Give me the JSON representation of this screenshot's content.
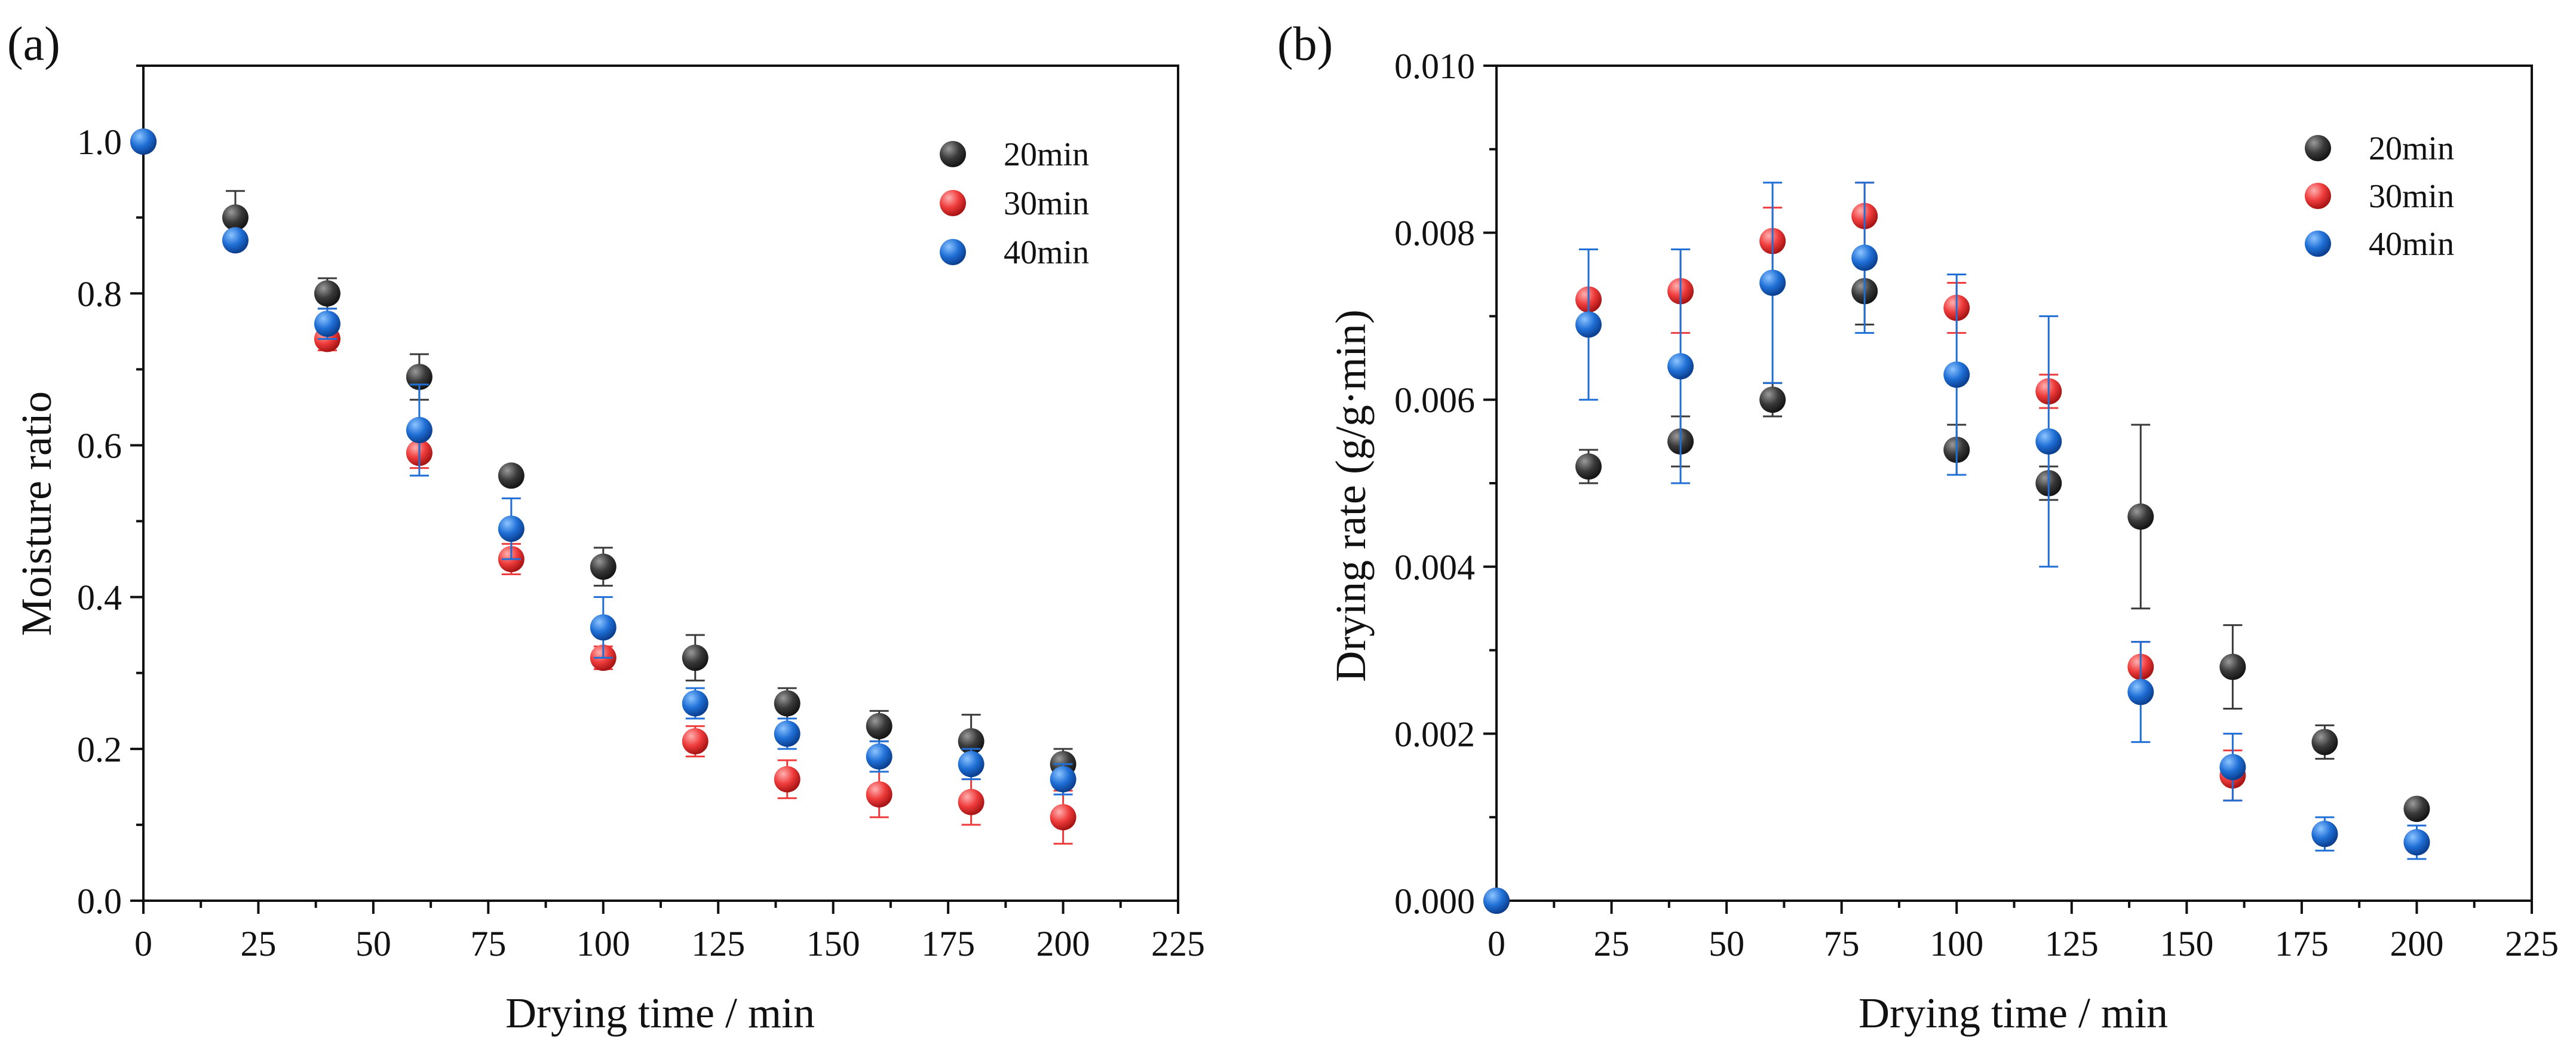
{
  "colors": {
    "20min": "#3a3a3a",
    "30min": "#ef3b3b",
    "40min": "#1f6fd6",
    "axis": "#111111"
  },
  "chart_data": [
    {
      "type": "scatter",
      "panel_label": "(a)",
      "xlabel": "Drying time / min",
      "ylabel": "Moisture ratio",
      "xlim": [
        0,
        225
      ],
      "ylim": [
        0.0,
        1.1
      ],
      "xticks": [
        0,
        25,
        50,
        75,
        100,
        125,
        150,
        175,
        200,
        225
      ],
      "xtick_labels": [
        "0",
        "25",
        "50",
        "75",
        "100",
        "125",
        "150",
        "175",
        "200",
        "225"
      ],
      "yticks": [
        0.0,
        0.2,
        0.4,
        0.6,
        0.8,
        1.0
      ],
      "ytick_labels": [
        "0.0",
        "0.2",
        "0.4",
        "0.6",
        "0.8",
        "1.0"
      ],
      "legend_position": "top-right",
      "series": [
        {
          "name": "20min",
          "x": [
            0,
            20,
            40,
            60,
            80,
            100,
            120,
            140,
            160,
            180,
            200
          ],
          "y": [
            1.0,
            0.9,
            0.8,
            0.69,
            0.56,
            0.44,
            0.32,
            0.26,
            0.23,
            0.21,
            0.18
          ],
          "err": [
            0,
            0.035,
            0.02,
            0.03,
            0.01,
            0.025,
            0.03,
            0.02,
            0.02,
            0.035,
            0.02
          ]
        },
        {
          "name": "30min",
          "x": [
            0,
            20,
            40,
            60,
            80,
            100,
            120,
            140,
            160,
            180,
            200
          ],
          "y": [
            1.0,
            0.87,
            0.74,
            0.59,
            0.45,
            0.32,
            0.21,
            0.16,
            0.14,
            0.13,
            0.11
          ],
          "err": [
            0,
            0.01,
            0.015,
            0.02,
            0.02,
            0.015,
            0.02,
            0.025,
            0.03,
            0.03,
            0.035
          ]
        },
        {
          "name": "40min",
          "x": [
            0,
            20,
            40,
            60,
            80,
            100,
            120,
            140,
            160,
            180,
            200
          ],
          "y": [
            1.0,
            0.87,
            0.76,
            0.62,
            0.49,
            0.36,
            0.26,
            0.22,
            0.19,
            0.18,
            0.16
          ],
          "err": [
            0,
            0.01,
            0.02,
            0.06,
            0.04,
            0.04,
            0.02,
            0.02,
            0.02,
            0.02,
            0.02
          ]
        }
      ]
    },
    {
      "type": "scatter",
      "panel_label": "(b)",
      "xlabel": "Drying time / min",
      "ylabel": "Drying rate (g/g·min)",
      "xlim": [
        0,
        225
      ],
      "ylim": [
        0.0,
        0.01
      ],
      "xticks": [
        0,
        25,
        50,
        75,
        100,
        125,
        150,
        175,
        200,
        225
      ],
      "xtick_labels": [
        "0",
        "25",
        "50",
        "75",
        "100",
        "125",
        "150",
        "175",
        "200",
        "225"
      ],
      "yticks": [
        0.0,
        0.002,
        0.004,
        0.006,
        0.008,
        0.01
      ],
      "ytick_labels": [
        "0.000",
        "0.002",
        "0.004",
        "0.006",
        "0.008",
        "0.010"
      ],
      "legend_position": "top-right",
      "series": [
        {
          "name": "20min",
          "x": [
            0,
            20,
            40,
            60,
            80,
            100,
            120,
            140,
            160,
            180,
            200
          ],
          "y": [
            0.0,
            0.0052,
            0.0055,
            0.006,
            0.0073,
            0.0054,
            0.005,
            0.0046,
            0.0028,
            0.0019,
            0.0011
          ],
          "err": [
            0,
            0.0002,
            0.0003,
            0.0002,
            0.0004,
            0.0003,
            0.0002,
            0.0011,
            0.0005,
            0.0002,
            0.0001
          ]
        },
        {
          "name": "30min",
          "x": [
            0,
            20,
            40,
            60,
            80,
            100,
            120,
            140,
            160,
            180,
            200
          ],
          "y": [
            0.0,
            0.0072,
            0.0073,
            0.0079,
            0.0082,
            0.0071,
            0.0061,
            0.0028,
            0.0015,
            0.0008,
            0.0007
          ],
          "err": [
            0,
            0.0001,
            0.0005,
            0.0004,
            0.0004,
            0.0003,
            0.0002,
            0.0003,
            0.0003,
            0.0001,
            0.0001
          ]
        },
        {
          "name": "40min",
          "x": [
            0,
            20,
            40,
            60,
            80,
            100,
            120,
            140,
            160,
            180,
            200
          ],
          "y": [
            0.0,
            0.0069,
            0.0064,
            0.0074,
            0.0077,
            0.0063,
            0.0055,
            0.0025,
            0.0016,
            0.0008,
            0.0007
          ],
          "err": [
            0,
            0.0009,
            0.0014,
            0.0012,
            0.0009,
            0.0012,
            0.0015,
            0.0006,
            0.0004,
            0.0002,
            0.0002
          ]
        }
      ]
    }
  ]
}
